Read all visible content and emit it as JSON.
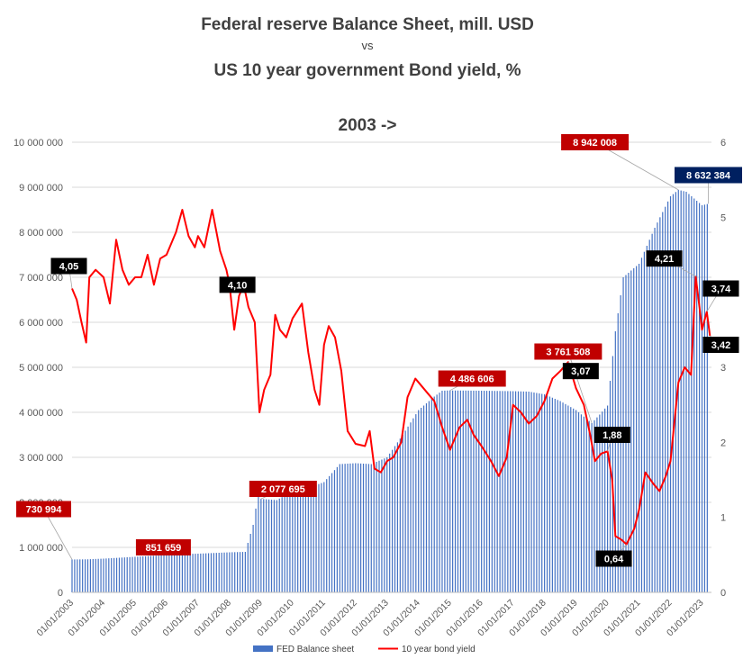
{
  "chart_data": {
    "type": "bar+line",
    "title": "Federal reserve Balance Sheet, mill. USD",
    "title_vs": "vs",
    "title_line2": "US 10 year government Bond yield, %",
    "subtitle": "2003 ->",
    "y_left": {
      "min": 0,
      "max": 10000000,
      "ticks": [
        "0",
        "1 000 000",
        "2 000 000",
        "3 000 000",
        "4 000 000",
        "5 000 000",
        "6 000 000",
        "7 000 000",
        "8 000 000",
        "9 000 000",
        "10 000 000"
      ]
    },
    "y_right": {
      "min": 0,
      "max": 6,
      "ticks": [
        "0",
        "1",
        "2",
        "3",
        "4",
        "5",
        "6"
      ]
    },
    "x_ticks": [
      "01/01/2003",
      "01/01/2004",
      "01/01/2005",
      "01/01/2006",
      "01/01/2007",
      "01/01/2008",
      "01/01/2009",
      "01/01/2010",
      "01/01/2011",
      "01/01/2012",
      "01/01/2013",
      "01/01/2014",
      "01/01/2015",
      "01/01/2016",
      "01/01/2017",
      "01/01/2018",
      "01/01/2019",
      "01/01/2020",
      "01/01/2021",
      "01/01/2022",
      "01/01/2023"
    ],
    "grid": true,
    "legend_position": "bottom",
    "series": [
      {
        "name": "FED Balance sheet",
        "axis": "left",
        "color": "#4472c4",
        "points": [
          [
            2003.0,
            730994
          ],
          [
            2003.5,
            735000
          ],
          [
            2004.0,
            750000
          ],
          [
            2004.5,
            770000
          ],
          [
            2005.0,
            790000
          ],
          [
            2005.5,
            810000
          ],
          [
            2006.0,
            825000
          ],
          [
            2006.5,
            851659
          ],
          [
            2007.0,
            860000
          ],
          [
            2007.5,
            875000
          ],
          [
            2008.0,
            890000
          ],
          [
            2008.5,
            900000
          ],
          [
            2008.75,
            1500000
          ],
          [
            2008.9,
            2150000
          ],
          [
            2009.0,
            2077695
          ],
          [
            2009.5,
            2050000
          ],
          [
            2010.0,
            2250000
          ],
          [
            2010.5,
            2320000
          ],
          [
            2011.0,
            2450000
          ],
          [
            2011.5,
            2850000
          ],
          [
            2012.0,
            2870000
          ],
          [
            2012.5,
            2850000
          ],
          [
            2013.0,
            3000000
          ],
          [
            2013.5,
            3500000
          ],
          [
            2014.0,
            4050000
          ],
          [
            2014.5,
            4350000
          ],
          [
            2014.75,
            4480000
          ],
          [
            2015.0,
            4486606
          ],
          [
            2016.0,
            4480000
          ],
          [
            2017.0,
            4470000
          ],
          [
            2017.5,
            4460000
          ],
          [
            2018.0,
            4400000
          ],
          [
            2018.5,
            4250000
          ],
          [
            2019.0,
            4050000
          ],
          [
            2019.5,
            3761508
          ],
          [
            2019.75,
            3950000
          ],
          [
            2020.0,
            4150000
          ],
          [
            2020.25,
            5800000
          ],
          [
            2020.5,
            7000000
          ],
          [
            2021.0,
            7300000
          ],
          [
            2021.5,
            8100000
          ],
          [
            2022.0,
            8800000
          ],
          [
            2022.25,
            8942008
          ],
          [
            2022.5,
            8900000
          ],
          [
            2022.75,
            8750000
          ],
          [
            2023.0,
            8600000
          ],
          [
            2023.2,
            8632384
          ]
        ]
      },
      {
        "name": "10 year bond yield",
        "axis": "right",
        "color": "#ff0000",
        "points": [
          [
            2003.0,
            4.05
          ],
          [
            2003.15,
            3.9
          ],
          [
            2003.3,
            3.6
          ],
          [
            2003.45,
            3.33
          ],
          [
            2003.55,
            4.2
          ],
          [
            2003.75,
            4.3
          ],
          [
            2004.0,
            4.2
          ],
          [
            2004.2,
            3.85
          ],
          [
            2004.4,
            4.7
          ],
          [
            2004.6,
            4.3
          ],
          [
            2004.8,
            4.1
          ],
          [
            2005.0,
            4.2
          ],
          [
            2005.2,
            4.2
          ],
          [
            2005.4,
            4.5
          ],
          [
            2005.6,
            4.1
          ],
          [
            2005.8,
            4.45
          ],
          [
            2006.0,
            4.5
          ],
          [
            2006.3,
            4.8
          ],
          [
            2006.5,
            5.1
          ],
          [
            2006.7,
            4.75
          ],
          [
            2006.9,
            4.6
          ],
          [
            2007.0,
            4.75
          ],
          [
            2007.2,
            4.6
          ],
          [
            2007.45,
            5.1
          ],
          [
            2007.7,
            4.55
          ],
          [
            2007.9,
            4.3
          ],
          [
            2008.0,
            4.1
          ],
          [
            2008.15,
            3.5
          ],
          [
            2008.3,
            3.95
          ],
          [
            2008.45,
            4.1
          ],
          [
            2008.6,
            3.8
          ],
          [
            2008.8,
            3.6
          ],
          [
            2008.95,
            2.4
          ],
          [
            2009.1,
            2.7
          ],
          [
            2009.3,
            2.9
          ],
          [
            2009.45,
            3.7
          ],
          [
            2009.6,
            3.5
          ],
          [
            2009.8,
            3.4
          ],
          [
            2010.0,
            3.65
          ],
          [
            2010.3,
            3.85
          ],
          [
            2010.5,
            3.2
          ],
          [
            2010.7,
            2.7
          ],
          [
            2010.85,
            2.5
          ],
          [
            2011.0,
            3.3
          ],
          [
            2011.15,
            3.55
          ],
          [
            2011.35,
            3.4
          ],
          [
            2011.55,
            2.95
          ],
          [
            2011.75,
            2.15
          ],
          [
            2012.0,
            1.98
          ],
          [
            2012.3,
            1.95
          ],
          [
            2012.45,
            2.15
          ],
          [
            2012.6,
            1.65
          ],
          [
            2012.8,
            1.6
          ],
          [
            2013.0,
            1.75
          ],
          [
            2013.2,
            1.8
          ],
          [
            2013.45,
            2.0
          ],
          [
            2013.65,
            2.6
          ],
          [
            2013.9,
            2.85
          ],
          [
            2014.0,
            2.8
          ],
          [
            2014.3,
            2.65
          ],
          [
            2014.5,
            2.55
          ],
          [
            2014.75,
            2.2
          ],
          [
            2015.0,
            1.9
          ],
          [
            2015.3,
            2.2
          ],
          [
            2015.55,
            2.3
          ],
          [
            2015.75,
            2.1
          ],
          [
            2016.0,
            1.95
          ],
          [
            2016.3,
            1.75
          ],
          [
            2016.55,
            1.55
          ],
          [
            2016.8,
            1.8
          ],
          [
            2017.0,
            2.5
          ],
          [
            2017.25,
            2.4
          ],
          [
            2017.5,
            2.25
          ],
          [
            2017.75,
            2.35
          ],
          [
            2018.0,
            2.55
          ],
          [
            2018.25,
            2.85
          ],
          [
            2018.5,
            2.95
          ],
          [
            2018.75,
            3.07
          ],
          [
            2019.0,
            2.72
          ],
          [
            2019.25,
            2.5
          ],
          [
            2019.45,
            2.1
          ],
          [
            2019.6,
            1.75
          ],
          [
            2019.8,
            1.85
          ],
          [
            2020.0,
            1.88
          ],
          [
            2020.15,
            1.5
          ],
          [
            2020.25,
            0.75
          ],
          [
            2020.45,
            0.7
          ],
          [
            2020.6,
            0.64
          ],
          [
            2020.85,
            0.85
          ],
          [
            2021.0,
            1.1
          ],
          [
            2021.2,
            1.6
          ],
          [
            2021.45,
            1.45
          ],
          [
            2021.65,
            1.35
          ],
          [
            2021.85,
            1.55
          ],
          [
            2022.0,
            1.75
          ],
          [
            2022.25,
            2.8
          ],
          [
            2022.45,
            3.0
          ],
          [
            2022.65,
            2.9
          ],
          [
            2022.8,
            4.21
          ],
          [
            2022.92,
            3.8
          ],
          [
            2023.0,
            3.5
          ],
          [
            2023.15,
            3.74
          ],
          [
            2023.25,
            3.42
          ]
        ]
      }
    ],
    "annotations": [
      {
        "text": "730 994",
        "x": 2003.0,
        "y": 730994,
        "axis": "left",
        "fill": "#c00000",
        "lx": 2002.1,
        "ly": 1850000
      },
      {
        "text": "851 659",
        "x": 2006.5,
        "y": 851659,
        "axis": "left",
        "fill": "#c00000",
        "lx": 2005.9,
        "ly": 1000000
      },
      {
        "text": "2 077 695",
        "x": 2009.0,
        "y": 2077695,
        "axis": "left",
        "fill": "#c00000",
        "lx": 2009.7,
        "ly": 2300000
      },
      {
        "text": "4 486 606",
        "x": 2015.0,
        "y": 4486606,
        "axis": "left",
        "fill": "#c00000",
        "lx": 2015.7,
        "ly": 4750000
      },
      {
        "text": "3 761 508",
        "x": 2019.5,
        "y": 3761508,
        "axis": "left",
        "fill": "#c00000",
        "lx": 2018.75,
        "ly": 5350000
      },
      {
        "text": "8 942 008",
        "x": 2022.25,
        "y": 8942008,
        "axis": "left",
        "fill": "#c00000",
        "lx": 2019.6,
        "ly": 10000000
      },
      {
        "text": "8 632 384",
        "x": 2023.2,
        "y": 8632384,
        "axis": "left",
        "fill": "#002060",
        "lx": 2023.2,
        "ly": 9270000
      },
      {
        "text": "4,05",
        "x": 2003.0,
        "y": 4.05,
        "axis": "right",
        "fill": "#000000",
        "lx": 2002.9,
        "ly": 4.35
      },
      {
        "text": "4,10",
        "x": 2008.0,
        "y": 4.1,
        "axis": "right",
        "fill": "#000000",
        "lx": 2008.25,
        "ly": 4.1
      },
      {
        "text": "3,07",
        "x": 2018.75,
        "y": 3.07,
        "axis": "right",
        "fill": "#000000",
        "lx": 2019.15,
        "ly": 2.95
      },
      {
        "text": "1,88",
        "x": 2020.0,
        "y": 1.88,
        "axis": "right",
        "fill": "#000000",
        "lx": 2020.15,
        "ly": 2.1
      },
      {
        "text": "0,64",
        "x": 2020.6,
        "y": 0.64,
        "axis": "right",
        "fill": "#000000",
        "lx": 2020.2,
        "ly": 0.45
      },
      {
        "text": "4,21",
        "x": 2022.8,
        "y": 4.21,
        "axis": "right",
        "fill": "#000000",
        "lx": 2021.8,
        "ly": 4.45
      },
      {
        "text": "3,74",
        "x": 2023.15,
        "y": 3.74,
        "axis": "right",
        "fill": "#000000",
        "lx": 2023.6,
        "ly": 4.05
      },
      {
        "text": "3,42",
        "x": 2023.25,
        "y": 3.42,
        "axis": "right",
        "fill": "#000000",
        "lx": 2023.6,
        "ly": 3.3
      }
    ],
    "x_range": [
      2003.0,
      2023.3
    ]
  }
}
